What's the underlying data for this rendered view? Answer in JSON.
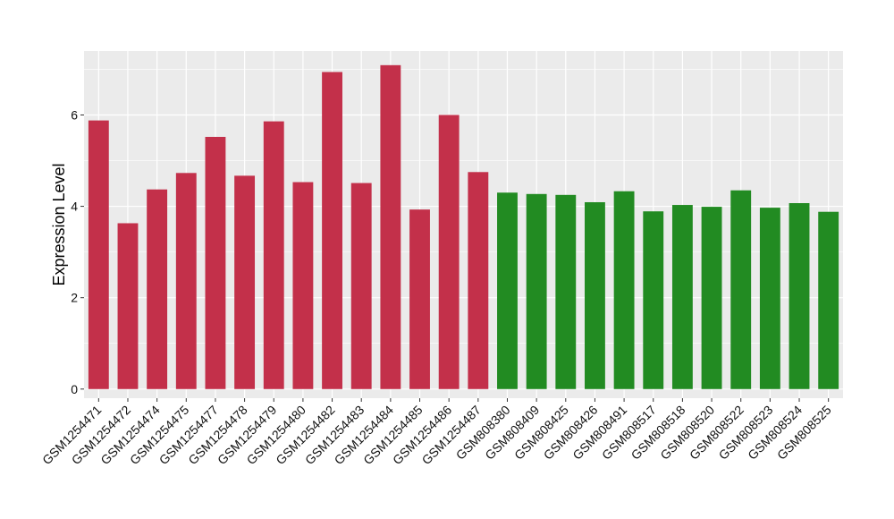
{
  "chart_data": {
    "type": "bar",
    "title": "",
    "xlabel": "",
    "ylabel": "Expression Level",
    "ylim": [
      -0.2,
      7.4
    ],
    "yticks": [
      0,
      2,
      4,
      6
    ],
    "grid": true,
    "background": "#ebebeb",
    "gridline_color": "#ffffff",
    "categories": [
      "GSM1254471",
      "GSM1254472",
      "GSM1254474",
      "GSM1254475",
      "GSM1254477",
      "GSM1254478",
      "GSM1254479",
      "GSM1254480",
      "GSM1254482",
      "GSM1254483",
      "GSM1254484",
      "GSM1254485",
      "GSM1254486",
      "GSM1254487",
      "GSM808380",
      "GSM808409",
      "GSM808425",
      "GSM808426",
      "GSM808491",
      "GSM808517",
      "GSM808518",
      "GSM808520",
      "GSM808522",
      "GSM808523",
      "GSM808524",
      "GSM808525"
    ],
    "values": [
      5.88,
      3.63,
      4.37,
      4.73,
      5.52,
      4.67,
      5.86,
      4.53,
      6.94,
      4.51,
      7.09,
      3.93,
      6.0,
      4.75,
      4.3,
      4.27,
      4.25,
      4.09,
      4.33,
      3.89,
      4.03,
      3.99,
      4.35,
      3.97,
      4.07,
      3.88
    ],
    "colors": [
      "#c3304a",
      "#c3304a",
      "#c3304a",
      "#c3304a",
      "#c3304a",
      "#c3304a",
      "#c3304a",
      "#c3304a",
      "#c3304a",
      "#c3304a",
      "#c3304a",
      "#c3304a",
      "#c3304a",
      "#c3304a",
      "#228b22",
      "#228b22",
      "#228b22",
      "#228b22",
      "#228b22",
      "#228b22",
      "#228b22",
      "#228b22",
      "#228b22",
      "#228b22",
      "#228b22",
      "#228b22"
    ]
  }
}
